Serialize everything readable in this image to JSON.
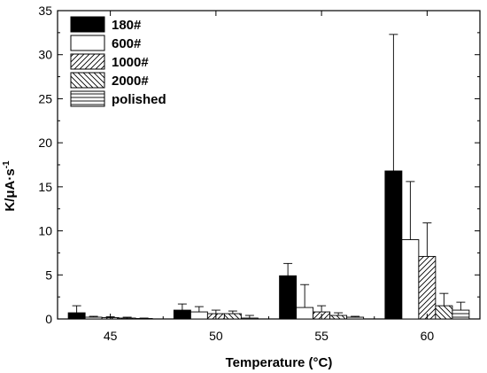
{
  "chart_data": {
    "type": "bar",
    "xlabel": "Temperature (°C)",
    "ylabel_main": "K/μA·s",
    "ylabel_sup": "-1",
    "ylim": [
      0,
      35
    ],
    "yticks": [
      0,
      5,
      10,
      15,
      20,
      25,
      30,
      35
    ],
    "categories": [
      "45",
      "50",
      "55",
      "60"
    ],
    "grid": false,
    "legend_position": "top-left",
    "series": [
      {
        "name": "180#",
        "pattern": "solid-black",
        "values": [
          0.7,
          1.0,
          4.9,
          16.8
        ],
        "errors": [
          0.8,
          0.7,
          1.4,
          15.5
        ]
      },
      {
        "name": "600#",
        "pattern": "white",
        "values": [
          0.2,
          0.8,
          1.3,
          9.0
        ],
        "errors": [
          0.1,
          0.6,
          2.6,
          6.6
        ]
      },
      {
        "name": "1000#",
        "pattern": "diag-up",
        "values": [
          0.15,
          0.6,
          0.8,
          7.1
        ],
        "errors": [
          0.1,
          0.4,
          0.7,
          3.8
        ]
      },
      {
        "name": "2000#",
        "pattern": "diag-down",
        "values": [
          0.1,
          0.6,
          0.4,
          1.5
        ],
        "errors": [
          0.1,
          0.3,
          0.3,
          1.4
        ]
      },
      {
        "name": "polished",
        "pattern": "horizontal",
        "values": [
          0.05,
          0.1,
          0.2,
          1.0
        ],
        "errors": [
          0.05,
          0.3,
          0.1,
          0.9
        ]
      }
    ]
  }
}
